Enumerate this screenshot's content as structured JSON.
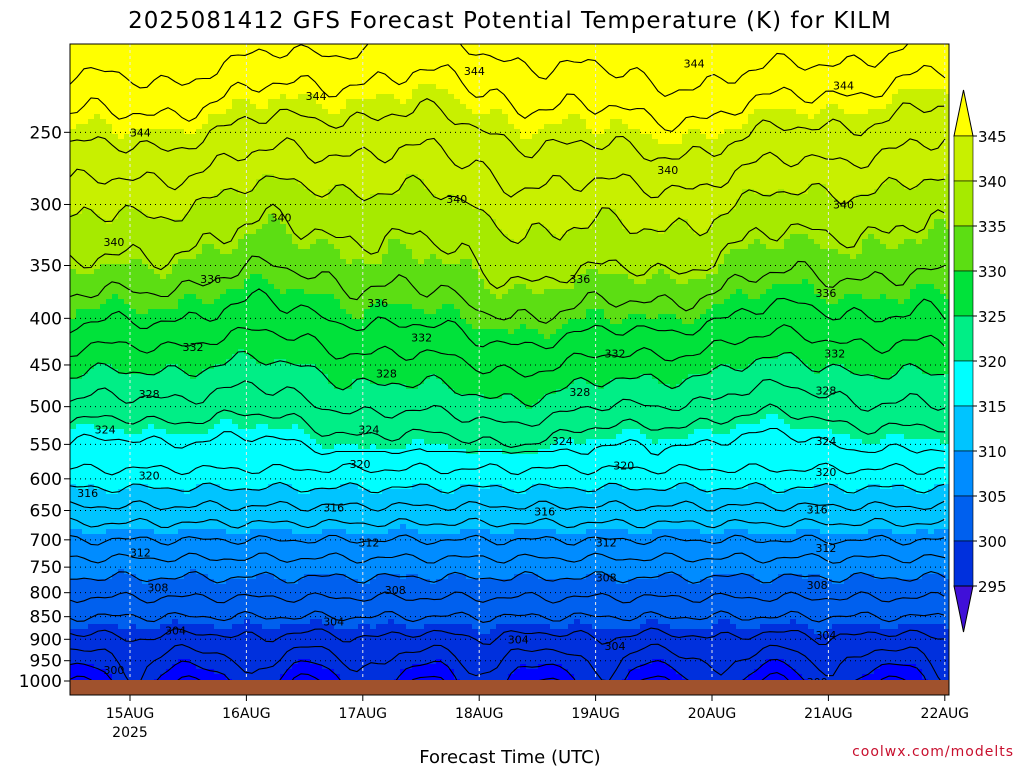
{
  "chart_data": {
    "type": "heatmap",
    "title": "2025081412 GFS Forecast Potential Temperature (K) for KILM",
    "xlabel": "Forecast Time (UTC)",
    "ylabel": "",
    "credit": "coolwx.com/modelts",
    "x_ticks": [
      "15AUG",
      "16AUG",
      "17AUG",
      "18AUG",
      "19AUG",
      "20AUG",
      "21AUG",
      "22AUG"
    ],
    "x_year": "2025",
    "y_ticks": [
      250,
      300,
      350,
      400,
      450,
      500,
      550,
      600,
      650,
      700,
      750,
      800,
      850,
      900,
      950,
      1000
    ],
    "y_axis": "pressure (hPa), log scale, inverted",
    "ylim": [
      200,
      1000
    ],
    "grid": true,
    "colorbar": {
      "placement": "right",
      "ticks": [
        345,
        340,
        335,
        330,
        325,
        320,
        315,
        310,
        305,
        300,
        295
      ],
      "colors": [
        "#ffff00",
        "#c8f000",
        "#a6ea00",
        "#5cde13",
        "#00e23a",
        "#00ee86",
        "#00ffff",
        "#00c4ff",
        "#008cff",
        "#0060ee",
        "#0030dd",
        "#0000ff",
        "#4010d8"
      ]
    },
    "profile": [
      {
        "p": 200,
        "theta": 349
      },
      {
        "p": 250,
        "theta": 344
      },
      {
        "p": 300,
        "theta": 340
      },
      {
        "p": 350,
        "theta": 337.5
      },
      {
        "p": 400,
        "theta": 334.5
      },
      {
        "p": 450,
        "theta": 331
      },
      {
        "p": 500,
        "theta": 328
      },
      {
        "p": 550,
        "theta": 324.5
      },
      {
        "p": 600,
        "theta": 321
      },
      {
        "p": 650,
        "theta": 317.5
      },
      {
        "p": 700,
        "theta": 314
      },
      {
        "p": 750,
        "theta": 311
      },
      {
        "p": 800,
        "theta": 308.5
      },
      {
        "p": 850,
        "theta": 306
      },
      {
        "p": 900,
        "theta": 303.5
      },
      {
        "p": 950,
        "theta": 301.5
      },
      {
        "p": 1000,
        "theta": 299.5
      }
    ],
    "contours": {
      "interval": 2,
      "min": 298,
      "max": 348
    }
  },
  "contour_labels": [
    {
      "text": "344",
      "t": 0.08,
      "p": 250
    },
    {
      "text": "344",
      "t": 0.28,
      "p": 228
    },
    {
      "text": "344",
      "t": 0.46,
      "p": 214
    },
    {
      "text": "344",
      "t": 0.71,
      "p": 210
    },
    {
      "text": "344",
      "t": 0.88,
      "p": 222
    },
    {
      "text": "340",
      "t": 0.05,
      "p": 330
    },
    {
      "text": "340",
      "t": 0.24,
      "p": 310
    },
    {
      "text": "340",
      "t": 0.44,
      "p": 296
    },
    {
      "text": "340",
      "t": 0.68,
      "p": 275
    },
    {
      "text": "340",
      "t": 0.88,
      "p": 300
    },
    {
      "text": "336",
      "t": 0.16,
      "p": 362
    },
    {
      "text": "336",
      "t": 0.35,
      "p": 385
    },
    {
      "text": "336",
      "t": 0.58,
      "p": 362
    },
    {
      "text": "336",
      "t": 0.86,
      "p": 375
    },
    {
      "text": "332",
      "t": 0.14,
      "p": 430
    },
    {
      "text": "332",
      "t": 0.4,
      "p": 420
    },
    {
      "text": "332",
      "t": 0.62,
      "p": 437
    },
    {
      "text": "332",
      "t": 0.87,
      "p": 437
    },
    {
      "text": "328",
      "t": 0.09,
      "p": 484
    },
    {
      "text": "328",
      "t": 0.36,
      "p": 460
    },
    {
      "text": "328",
      "t": 0.58,
      "p": 482
    },
    {
      "text": "328",
      "t": 0.86,
      "p": 480
    },
    {
      "text": "324",
      "t": 0.04,
      "p": 530
    },
    {
      "text": "324",
      "t": 0.34,
      "p": 530
    },
    {
      "text": "324",
      "t": 0.56,
      "p": 545
    },
    {
      "text": "324",
      "t": 0.86,
      "p": 545
    },
    {
      "text": "320",
      "t": 0.09,
      "p": 595
    },
    {
      "text": "320",
      "t": 0.33,
      "p": 578
    },
    {
      "text": "320",
      "t": 0.63,
      "p": 580
    },
    {
      "text": "320",
      "t": 0.86,
      "p": 590
    },
    {
      "text": "316",
      "t": 0.02,
      "p": 622
    },
    {
      "text": "316",
      "t": 0.3,
      "p": 645
    },
    {
      "text": "316",
      "t": 0.54,
      "p": 652
    },
    {
      "text": "316",
      "t": 0.85,
      "p": 648
    },
    {
      "text": "312",
      "t": 0.08,
      "p": 723
    },
    {
      "text": "312",
      "t": 0.34,
      "p": 705
    },
    {
      "text": "312",
      "t": 0.61,
      "p": 705
    },
    {
      "text": "312",
      "t": 0.86,
      "p": 715
    },
    {
      "text": "308",
      "t": 0.1,
      "p": 790
    },
    {
      "text": "308",
      "t": 0.37,
      "p": 795
    },
    {
      "text": "308",
      "t": 0.61,
      "p": 770
    },
    {
      "text": "308",
      "t": 0.85,
      "p": 785
    },
    {
      "text": "304",
      "t": 0.12,
      "p": 880
    },
    {
      "text": "304",
      "t": 0.3,
      "p": 860
    },
    {
      "text": "304",
      "t": 0.51,
      "p": 900
    },
    {
      "text": "304",
      "t": 0.62,
      "p": 915
    },
    {
      "text": "304",
      "t": 0.86,
      "p": 890
    },
    {
      "text": "300",
      "t": 0.05,
      "p": 972
    },
    {
      "text": "300",
      "t": 0.85,
      "p": 1002
    }
  ]
}
